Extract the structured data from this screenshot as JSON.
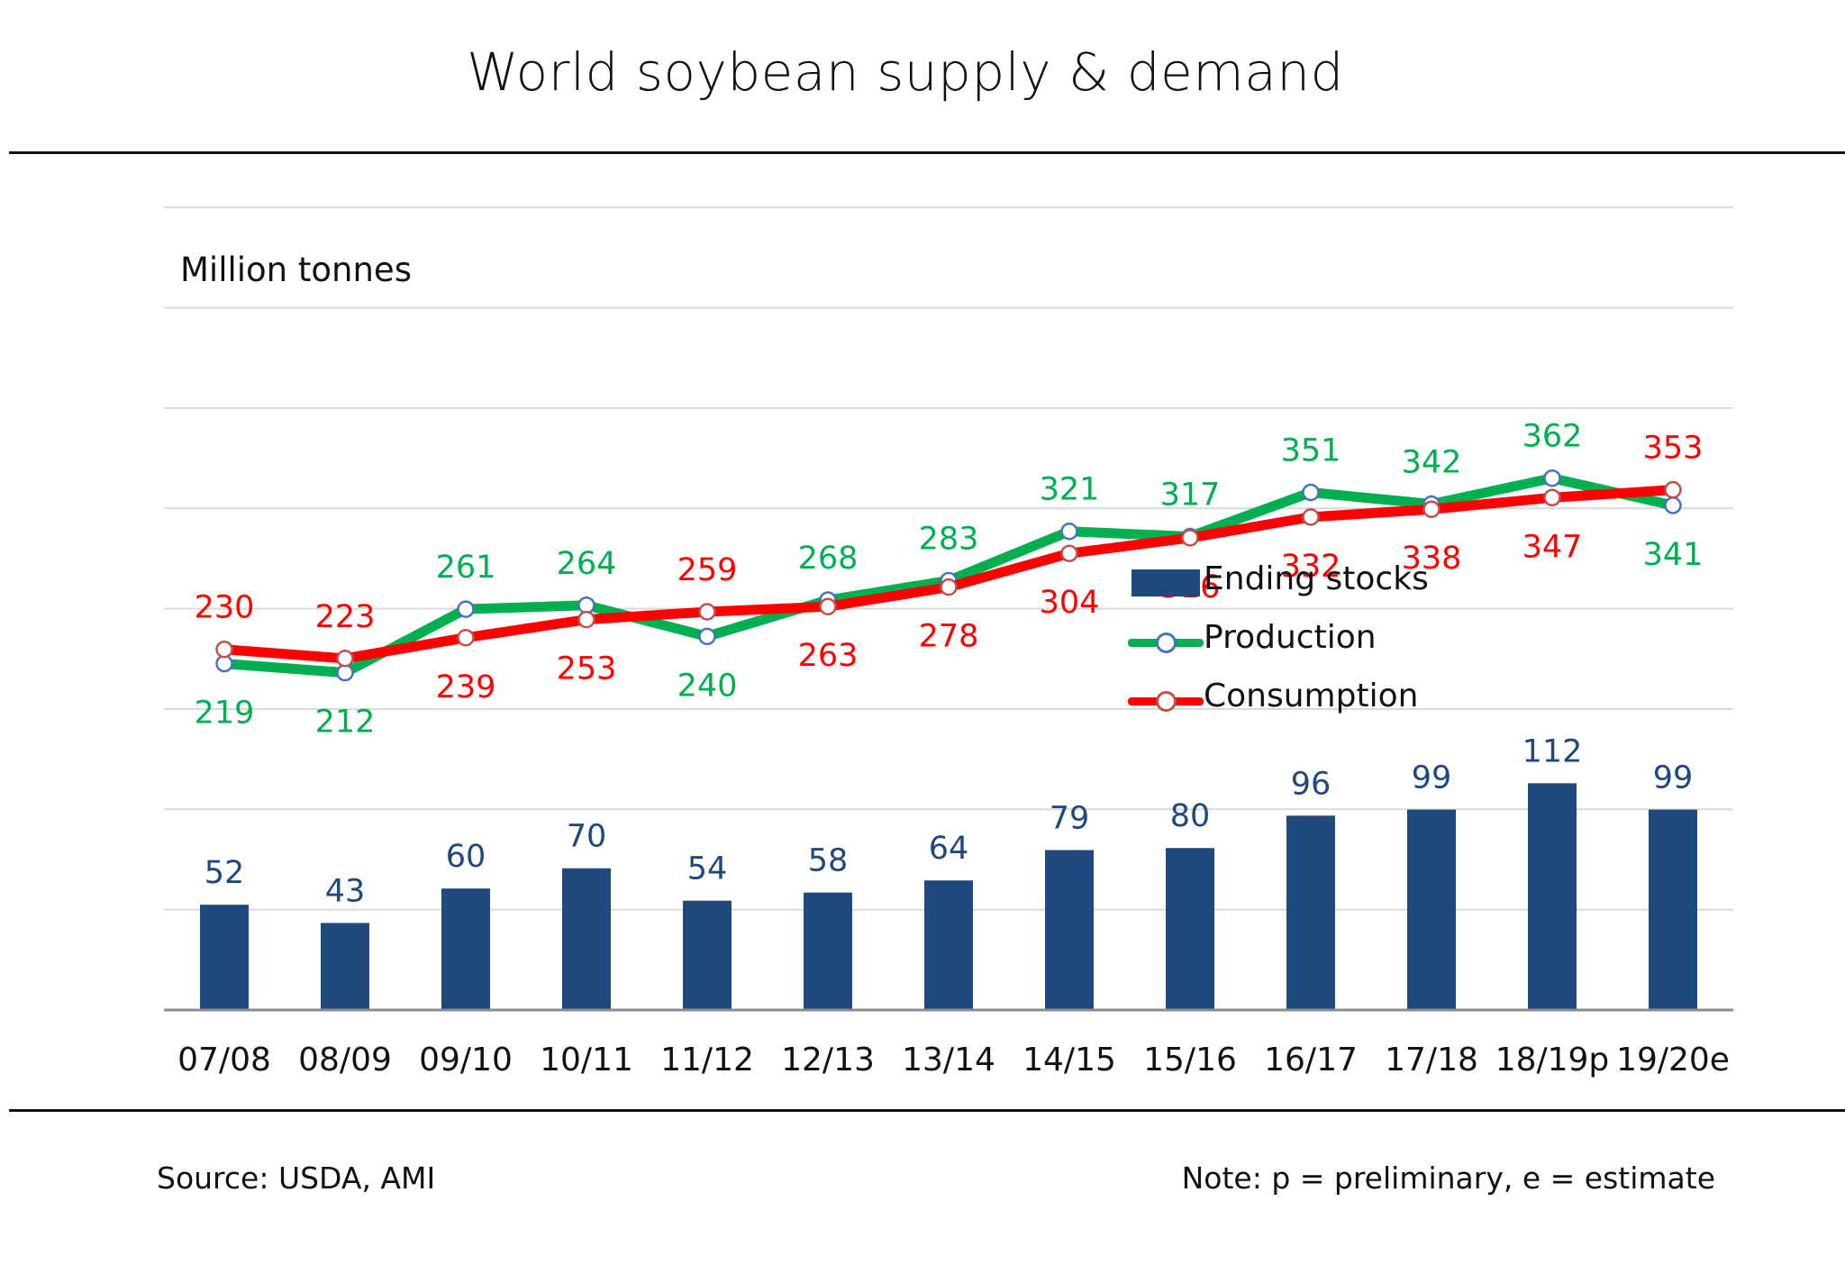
{
  "header": {
    "title": "World soybean supply & demand"
  },
  "footer": {
    "source": "Source: USDA, AMI",
    "note": "Note: p = preliminary, e = estimate"
  },
  "colors": {
    "bar": "#1f497d",
    "production": "#00b050",
    "consumption": "#ff0000",
    "marker_edge_production": "#4472c4",
    "marker_edge_consumption": "#c0504d",
    "grid": "#d9d9d9",
    "bar_label": "#1f497d"
  },
  "chart_data": {
    "type": "bar+line",
    "unit_label": "Million tonnes",
    "categories": [
      "07/08",
      "08/09",
      "09/10",
      "10/11",
      "11/12",
      "12/13",
      "13/14",
      "14/15",
      "15/16",
      "16/17",
      "17/18",
      "18/19p",
      "19/20e"
    ],
    "series": [
      {
        "name": "Ending stocks",
        "type": "bar",
        "values": [
          52,
          43,
          60,
          70,
          54,
          58,
          64,
          79,
          80,
          96,
          99,
          112,
          99
        ]
      },
      {
        "name": "Production",
        "type": "line",
        "values": [
          219,
          212,
          261,
          264,
          240,
          268,
          283,
          321,
          317,
          351,
          342,
          362,
          341
        ]
      },
      {
        "name": "Consumption",
        "type": "line",
        "values": [
          230,
          223,
          239,
          253,
          259,
          263,
          278,
          304,
          316,
          332,
          338,
          347,
          353
        ]
      }
    ],
    "ylim": [
      0,
      400
    ],
    "grid": true,
    "legend_position": "center-right"
  }
}
